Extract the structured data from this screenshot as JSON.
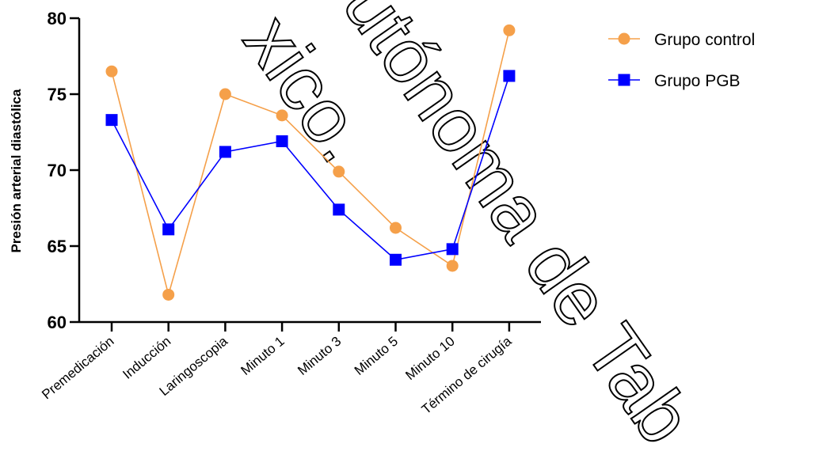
{
  "chart_data": {
    "type": "line",
    "title": "",
    "xlabel": "",
    "ylabel": "Presión arterial diastólica",
    "ylim": [
      60,
      80
    ],
    "yticks": [
      60,
      65,
      70,
      75,
      80
    ],
    "categories": [
      "Premedicación",
      "Inducción",
      "Laringoscopia",
      "Minuto 1",
      "Minuto 3",
      "Minuto 5",
      "Minuto 10",
      "Término de cirugía"
    ],
    "series": [
      {
        "name": "Grupo control",
        "color": "#f5a04a",
        "marker": "circle",
        "values": [
          76.5,
          61.8,
          75.0,
          73.6,
          69.9,
          66.2,
          63.7,
          79.2
        ]
      },
      {
        "name": "Grupo PGB",
        "color": "#0000ff",
        "marker": "square",
        "values": [
          73.3,
          66.1,
          71.2,
          71.9,
          67.4,
          64.1,
          64.8,
          76.2
        ]
      }
    ],
    "grid": false,
    "legend_position": "top-right"
  },
  "watermark": {
    "fragments": [
      "xico.",
      "utónoma de Tab"
    ]
  }
}
